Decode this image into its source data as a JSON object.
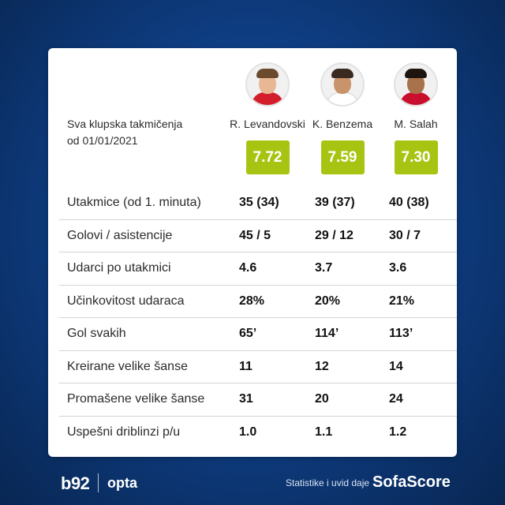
{
  "caption": {
    "line1": "Sva klupska takmičenja",
    "line2": "od 01/01/2021"
  },
  "players": [
    {
      "name": "R. Levandovski",
      "rating": "7.72",
      "hair_color": "#6b4a2e",
      "skin_color": "#e8b894",
      "shirt_color": "#d21f2b",
      "avatar_icon": "player-photo-icon"
    },
    {
      "name": "K. Benzema",
      "rating": "7.59",
      "hair_color": "#3a2a20",
      "skin_color": "#c9936b",
      "shirt_color": "#ffffff",
      "avatar_icon": "player-photo-icon"
    },
    {
      "name": "M. Salah",
      "rating": "7.30",
      "hair_color": "#1e1410",
      "skin_color": "#a8734c",
      "shirt_color": "#c8102e",
      "avatar_icon": "player-photo-icon"
    }
  ],
  "rating_color": "#a8c412",
  "stats": [
    {
      "label": "Utakmice (od 1. minuta)",
      "values": [
        "35 (34)",
        "39 (37)",
        "40 (38)"
      ]
    },
    {
      "label": "Golovi / asistencije",
      "values": [
        "45 / 5",
        "29 / 12",
        "30 / 7"
      ]
    },
    {
      "label": "Udarci po utakmici",
      "values": [
        "4.6",
        "3.7",
        "3.6"
      ]
    },
    {
      "label": "Učinkovitost udaraca",
      "values": [
        "28%",
        "20%",
        "21%"
      ]
    },
    {
      "label": "Gol svakih",
      "values": [
        "65’",
        "114’",
        "113’"
      ]
    },
    {
      "label": "Kreirane velike šanse",
      "values": [
        "11",
        "12",
        "14"
      ]
    },
    {
      "label": "Promašene velike šanse",
      "values": [
        "31",
        "20",
        "24"
      ]
    },
    {
      "label": "Uspešni driblinzi p/u",
      "values": [
        "1.0",
        "1.1",
        "1.2"
      ]
    }
  ],
  "footer": {
    "logo_b92": "b92",
    "logo_opta": "opta",
    "credit": "Statistike i uvid daje",
    "brand": "SofaScore"
  }
}
